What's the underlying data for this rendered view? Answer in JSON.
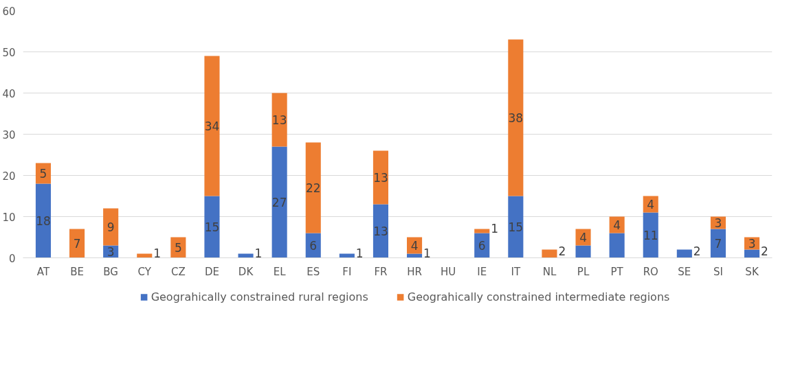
{
  "chart_data": {
    "type": "bar",
    "stacked": true,
    "categories": [
      "AT",
      "BE",
      "BG",
      "CY",
      "CZ",
      "DE",
      "DK",
      "EL",
      "ES",
      "FI",
      "FR",
      "HR",
      "HU",
      "IE",
      "IT",
      "NL",
      "PL",
      "PT",
      "RO",
      "SE",
      "SI",
      "SK"
    ],
    "series": [
      {
        "name": "Geograhically constrained rural regions",
        "color": "#4472c4",
        "values": [
          18,
          0,
          3,
          0,
          0,
          15,
          1,
          27,
          6,
          1,
          13,
          1,
          0,
          6,
          15,
          0,
          3,
          6,
          11,
          2,
          7,
          2
        ],
        "value_labels": [
          "18",
          null,
          "3",
          null,
          null,
          "15",
          "1",
          "27",
          "6",
          "1",
          "13",
          "1",
          null,
          "6",
          "15",
          null,
          null,
          null,
          "11",
          "2",
          "7",
          "2"
        ]
      },
      {
        "name": "Geograhically constrained intermediate regions",
        "color": "#ed7d31",
        "values": [
          5,
          7,
          9,
          1,
          5,
          34,
          0,
          13,
          22,
          0,
          13,
          4,
          0,
          1,
          38,
          2,
          4,
          4,
          4,
          0,
          3,
          3
        ],
        "value_labels": [
          "5",
          "7",
          "9",
          "1",
          "5",
          "34",
          null,
          "13",
          "22",
          null,
          "13",
          "4",
          null,
          "1",
          "38",
          "2",
          "4",
          "4",
          "4",
          null,
          "3",
          "3"
        ]
      }
    ],
    "ylim": [
      0,
      60
    ],
    "yticks": [
      0,
      10,
      20,
      30,
      40,
      50,
      60
    ],
    "grid": "y",
    "legend": "bottom"
  }
}
